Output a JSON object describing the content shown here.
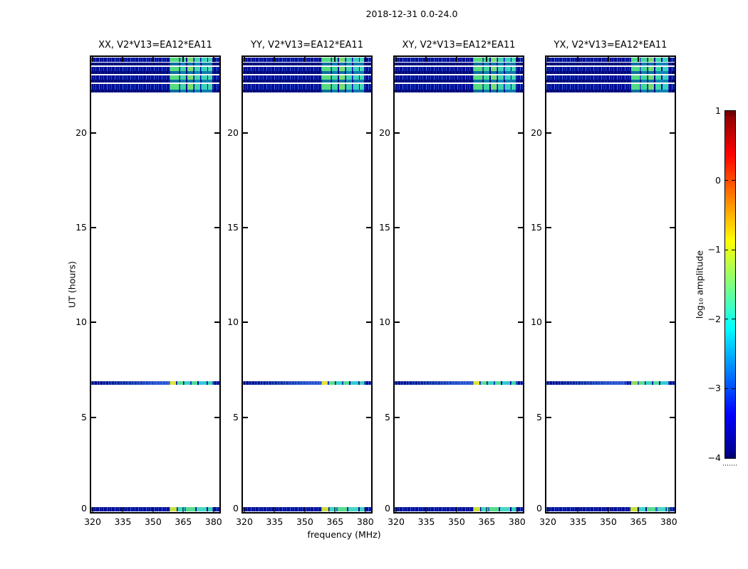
{
  "chart_data": {
    "type": "heatmap",
    "title": "2018-12-31 0.0-24.0",
    "xlabel": "frequency (MHz)",
    "ylabel": "UT (hours)",
    "xlim": [
      319.3,
      382.9
    ],
    "ylim": [
      0,
      24
    ],
    "x_ticks": [
      320,
      335,
      350,
      365,
      380
    ],
    "y_ticks": [
      0,
      5,
      10,
      15,
      20
    ],
    "panels": [
      {
        "title": "XX, V2*V13=EA12*EA11",
        "pattern": "default"
      },
      {
        "title": "YY, V2*V13=EA12*EA11",
        "pattern": "default"
      },
      {
        "title": "XY, V2*V13=EA12*EA11",
        "pattern": "default"
      },
      {
        "title": "YX, V2*V13=EA12*EA11",
        "pattern": "shifted"
      }
    ],
    "rows": [
      {
        "ut0": 23.95,
        "ut1": 23.72,
        "kind": "bright"
      },
      {
        "ut0": 23.72,
        "ut1": 23.57,
        "kind": "dim"
      },
      {
        "ut0": 23.47,
        "ut1": 23.25,
        "kind": "bright"
      },
      {
        "ut0": 23.25,
        "ut1": 23.09,
        "kind": "dim"
      },
      {
        "ut0": 23.02,
        "ut1": 22.81,
        "kind": "bright"
      },
      {
        "ut0": 22.81,
        "ut1": 22.66,
        "kind": "dim"
      },
      {
        "ut0": 22.57,
        "ut1": 22.26,
        "kind": "bright"
      },
      {
        "ut0": 22.26,
        "ut1": 22.12,
        "kind": "dim"
      },
      {
        "ut0": 6.9,
        "ut1": 6.72,
        "kind": "mid"
      },
      {
        "ut0": 0.25,
        "ut1": 0.03,
        "kind": "bottom"
      }
    ],
    "base_colors": {
      "bright": "#000d96",
      "dim": "#000478",
      "mid": "#000a8c",
      "bottom": "#000d96"
    },
    "patterns": {
      "default": {
        "bright": [
          [
            0.615,
            0.685,
            "#55dd7f"
          ],
          [
            0.695,
            0.74,
            "#3fd79e"
          ],
          [
            0.75,
            0.795,
            "#78df6e"
          ],
          [
            0.805,
            0.85,
            "#41d7ae"
          ],
          [
            0.86,
            0.905,
            "#38d2c2"
          ],
          [
            0.912,
            0.945,
            "#45d9b4"
          ]
        ],
        "dim": [
          [
            0.615,
            0.685,
            "#0c6f9e"
          ],
          [
            0.695,
            0.74,
            "#0d7fae"
          ],
          [
            0.75,
            0.795,
            "#0c74a4"
          ],
          [
            0.805,
            0.85,
            "#0e86b4"
          ],
          [
            0.86,
            0.945,
            "#0d7cac"
          ]
        ],
        "mid": [
          [
            0.613,
            0.662,
            "#e3e438"
          ],
          [
            0.672,
            0.716,
            "#5cdd90"
          ],
          [
            0.726,
            0.772,
            "#38d2c6"
          ],
          [
            0.782,
            0.828,
            "#52db9e"
          ],
          [
            0.838,
            0.9,
            "#32cbd4"
          ],
          [
            0.91,
            0.948,
            "#3ed5b8"
          ]
        ],
        "bottom": [
          [
            0.613,
            0.668,
            "#cae03e"
          ],
          [
            0.678,
            0.73,
            "#3ed5c8"
          ],
          [
            0.74,
            0.812,
            "#58dc8e"
          ],
          [
            0.822,
            0.9,
            "#46d8c4"
          ],
          [
            0.91,
            0.948,
            "#3bd2c0"
          ]
        ]
      },
      "shifted": {
        "bright": [
          [
            0.66,
            0.73,
            "#4fdb86"
          ],
          [
            0.74,
            0.785,
            "#3fd79e"
          ],
          [
            0.795,
            0.84,
            "#74de70"
          ],
          [
            0.85,
            0.895,
            "#41d7ae"
          ],
          [
            0.905,
            0.95,
            "#38d2c2"
          ]
        ],
        "dim": [
          [
            0.66,
            0.73,
            "#0c6f9e"
          ],
          [
            0.74,
            0.785,
            "#0d7fae"
          ],
          [
            0.795,
            0.84,
            "#0c74a4"
          ],
          [
            0.85,
            0.95,
            "#0e86b4"
          ]
        ],
        "mid": [
          [
            0.66,
            0.71,
            "#8adf62"
          ],
          [
            0.72,
            0.766,
            "#5cdd90"
          ],
          [
            0.776,
            0.822,
            "#38d2c6"
          ],
          [
            0.832,
            0.878,
            "#52db9e"
          ],
          [
            0.888,
            0.95,
            "#32cbd4"
          ]
        ],
        "bottom": [
          [
            0.655,
            0.71,
            "#cae03e"
          ],
          [
            0.72,
            0.772,
            "#3ed5c8"
          ],
          [
            0.782,
            0.854,
            "#58dc8e"
          ],
          [
            0.864,
            0.93,
            "#46d8c4"
          ],
          [
            0.94,
            0.965,
            "#3bd2c0"
          ]
        ]
      }
    },
    "colorbar": {
      "label": "log₁₀ amplitude",
      "ticks": [
        1,
        0,
        -1,
        -2,
        -3,
        -4
      ],
      "range": [
        -4,
        1
      ],
      "colormap": "jet",
      "gradient": [
        [
          "#000080",
          0
        ],
        [
          "#0000ff",
          0.125
        ],
        [
          "#00ffff",
          0.375
        ],
        [
          "#ffff00",
          0.625
        ],
        [
          "#ff0000",
          0.875
        ],
        [
          "#800000",
          1
        ]
      ]
    }
  }
}
